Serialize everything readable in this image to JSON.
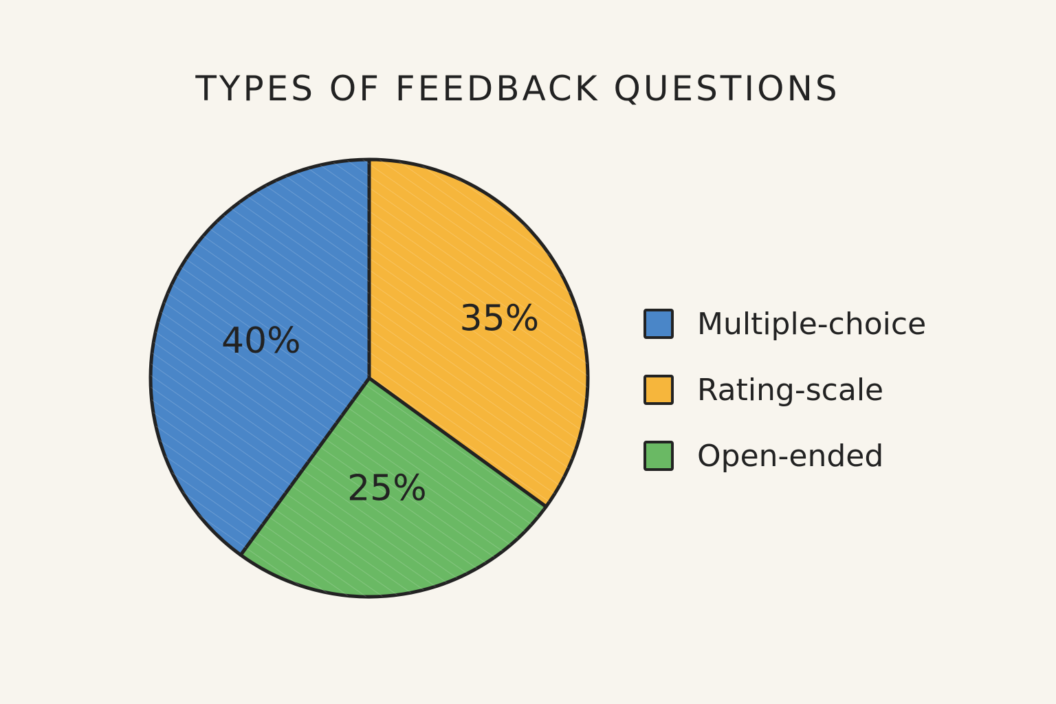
{
  "chart_data": {
    "type": "pie",
    "title": "TYPES OF FEEDBACK QUESTIONS",
    "categories": [
      "Multiple-choice",
      "Rating-scale",
      "Open-ended"
    ],
    "values": [
      40,
      35,
      25
    ],
    "labels": [
      "40%",
      "35%",
      "25%"
    ],
    "colors": [
      "#4a86c8",
      "#f6b63c",
      "#6ab964"
    ],
    "legend_position": "right"
  }
}
